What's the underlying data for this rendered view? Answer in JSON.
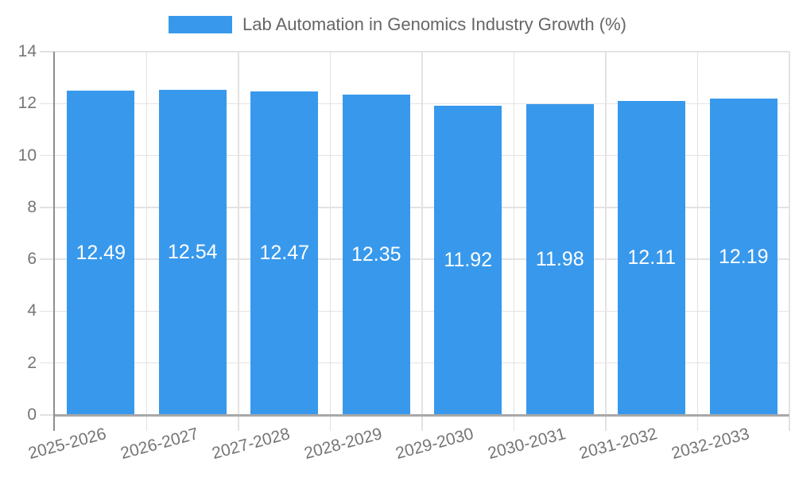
{
  "chart_data": {
    "type": "bar",
    "title": "Lab Automation in Genomics Industry Growth (%)",
    "categories": [
      "2025-2026",
      "2026-2027",
      "2027-2028",
      "2028-2029",
      "2029-2030",
      "2030-2031",
      "2031-2032",
      "2032-2033"
    ],
    "values": [
      12.49,
      12.54,
      12.47,
      12.35,
      11.92,
      11.98,
      12.11,
      12.19
    ],
    "bar_labels": [
      "12.49",
      "12.54",
      "12.47",
      "12.35",
      "11.92",
      "11.98",
      "12.11",
      "12.19"
    ],
    "xlabel": "",
    "ylabel": "",
    "ylim": [
      0,
      14
    ],
    "yticks": [
      0,
      2,
      4,
      6,
      8,
      10,
      12,
      14
    ],
    "grid": true,
    "legend_position": "top"
  },
  "colors": {
    "bar": "#3899EC",
    "grid": "#E3E3E3",
    "tick": "#E2E2E2",
    "axis_y": "#8E8E8E",
    "axis_x": "#A8A8A8",
    "axis_text": "#757575",
    "legend_text": "#666666",
    "bar_label_text": "#FFFFFF",
    "background": "#FFFFFF"
  }
}
